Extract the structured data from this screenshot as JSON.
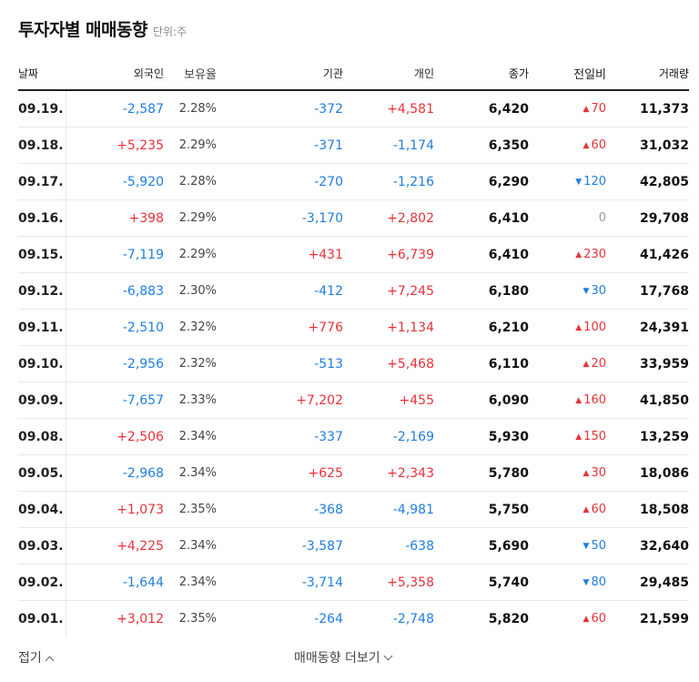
{
  "header": {
    "title": "투자자별 매매동향",
    "unit": "단위:주"
  },
  "columns": {
    "date": "날짜",
    "foreign": "외국인",
    "holding": "보유율",
    "institution": "기관",
    "individual": "개인",
    "close": "종가",
    "change": "전일비",
    "volume": "거래량"
  },
  "colors": {
    "up": "#e7323a",
    "down": "#1f7ee0",
    "flat": "#999999"
  },
  "rows": [
    {
      "date": "09.19.",
      "foreign": "-2,587",
      "holding": "2.28%",
      "institution": "-372",
      "individual": "+4,581",
      "close": "6,420",
      "change_dir": "up",
      "change": "70",
      "volume": "11,373"
    },
    {
      "date": "09.18.",
      "foreign": "+5,235",
      "holding": "2.29%",
      "institution": "-371",
      "individual": "-1,174",
      "close": "6,350",
      "change_dir": "up",
      "change": "60",
      "volume": "31,032"
    },
    {
      "date": "09.17.",
      "foreign": "-5,920",
      "holding": "2.28%",
      "institution": "-270",
      "individual": "-1,216",
      "close": "6,290",
      "change_dir": "down",
      "change": "120",
      "volume": "42,805"
    },
    {
      "date": "09.16.",
      "foreign": "+398",
      "holding": "2.29%",
      "institution": "-3,170",
      "individual": "+2,802",
      "close": "6,410",
      "change_dir": "flat",
      "change": "0",
      "volume": "29,708"
    },
    {
      "date": "09.15.",
      "foreign": "-7,119",
      "holding": "2.29%",
      "institution": "+431",
      "individual": "+6,739",
      "close": "6,410",
      "change_dir": "up",
      "change": "230",
      "volume": "41,426"
    },
    {
      "date": "09.12.",
      "foreign": "-6,883",
      "holding": "2.30%",
      "institution": "-412",
      "individual": "+7,245",
      "close": "6,180",
      "change_dir": "down",
      "change": "30",
      "volume": "17,768"
    },
    {
      "date": "09.11.",
      "foreign": "-2,510",
      "holding": "2.32%",
      "institution": "+776",
      "individual": "+1,134",
      "close": "6,210",
      "change_dir": "up",
      "change": "100",
      "volume": "24,391"
    },
    {
      "date": "09.10.",
      "foreign": "-2,956",
      "holding": "2.32%",
      "institution": "-513",
      "individual": "+5,468",
      "close": "6,110",
      "change_dir": "up",
      "change": "20",
      "volume": "33,959"
    },
    {
      "date": "09.09.",
      "foreign": "-7,657",
      "holding": "2.33%",
      "institution": "+7,202",
      "individual": "+455",
      "close": "6,090",
      "change_dir": "up",
      "change": "160",
      "volume": "41,850"
    },
    {
      "date": "09.08.",
      "foreign": "+2,506",
      "holding": "2.34%",
      "institution": "-337",
      "individual": "-2,169",
      "close": "5,930",
      "change_dir": "up",
      "change": "150",
      "volume": "13,259"
    },
    {
      "date": "09.05.",
      "foreign": "-2,968",
      "holding": "2.34%",
      "institution": "+625",
      "individual": "+2,343",
      "close": "5,780",
      "change_dir": "up",
      "change": "30",
      "volume": "18,086"
    },
    {
      "date": "09.04.",
      "foreign": "+1,073",
      "holding": "2.35%",
      "institution": "-368",
      "individual": "-4,981",
      "close": "5,750",
      "change_dir": "up",
      "change": "60",
      "volume": "18,508"
    },
    {
      "date": "09.03.",
      "foreign": "+4,225",
      "holding": "2.34%",
      "institution": "-3,587",
      "individual": "-638",
      "close": "5,690",
      "change_dir": "down",
      "change": "50",
      "volume": "32,640"
    },
    {
      "date": "09.02.",
      "foreign": "-1,644",
      "holding": "2.34%",
      "institution": "-3,714",
      "individual": "+5,358",
      "close": "5,740",
      "change_dir": "down",
      "change": "80",
      "volume": "29,485"
    },
    {
      "date": "09.01.",
      "foreign": "+3,012",
      "holding": "2.35%",
      "institution": "-264",
      "individual": "-2,748",
      "close": "5,820",
      "change_dir": "up",
      "change": "60",
      "volume": "21,599"
    }
  ],
  "footer": {
    "fold_label": "접기",
    "more_label": "매매동향 더보기"
  }
}
